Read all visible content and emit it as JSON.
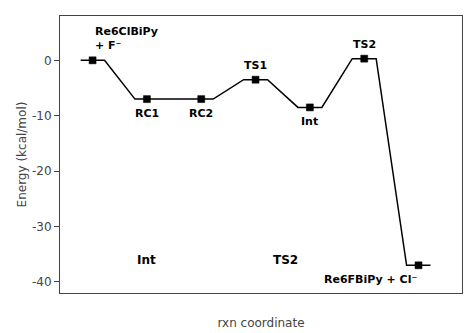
{
  "chart_data": {
    "type": "line",
    "xlabel": "rxn coordinate",
    "ylabel": "Energy (kcal/mol)",
    "x": [
      1,
      2,
      3,
      4,
      5,
      6,
      7
    ],
    "values": [
      0.0,
      -7.0,
      -7.0,
      -3.5,
      -8.5,
      0.3,
      -37.0
    ],
    "xlim": [
      0.4,
      7.8
    ],
    "xticks": [],
    "ylim": [
      -42,
      8
    ],
    "yticks": [
      0,
      -10,
      -20,
      -30,
      -40
    ],
    "tick_labels": "y",
    "grid": false,
    "color": "black",
    "marker": "square",
    "annotations": [
      {
        "text": "Re6ClBiPy\n+ F⁻",
        "x": 1,
        "y": 0.0
      },
      {
        "text": "RC1",
        "x": 2,
        "y": -7.0
      },
      {
        "text": "RC2",
        "x": 3,
        "y": -7.0
      },
      {
        "text": "TS1",
        "x": 4,
        "y": -3.5
      },
      {
        "text": "Int",
        "x": 5,
        "y": -8.5
      },
      {
        "text": "TS2",
        "x": 6,
        "y": 0.3
      },
      {
        "text": "Re6FBiPy + Cl⁻",
        "x": 7,
        "y": -37.0
      },
      {
        "text": "Int",
        "x": 2.0,
        "y": -34.5
      },
      {
        "text": "TS2",
        "x": 4.55,
        "y": -34.5
      }
    ]
  }
}
